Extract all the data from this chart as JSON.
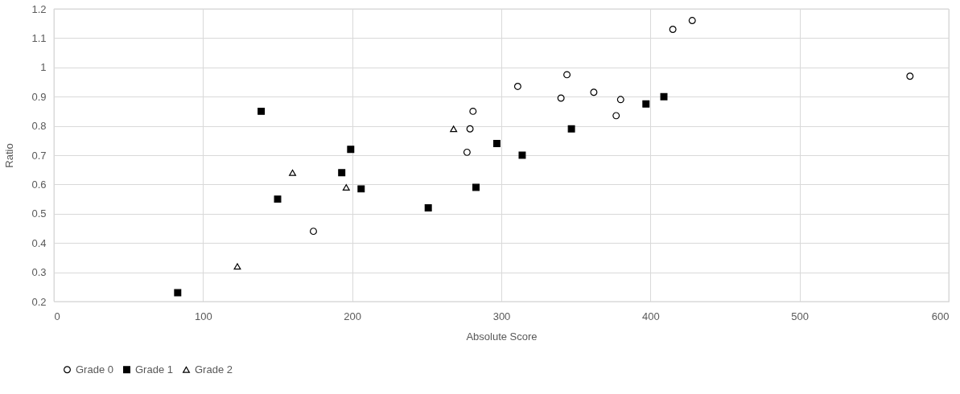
{
  "chart_data": {
    "type": "scatter",
    "xlabel": "Absolute Score",
    "ylabel": "Ratio",
    "xlim": [
      0,
      600
    ],
    "xticks": [
      0,
      100,
      200,
      300,
      400,
      500,
      600
    ],
    "ylim": [
      0.2,
      1.2
    ],
    "yticks": [
      0.2,
      0.3,
      0.4,
      0.5,
      0.6,
      0.7,
      0.8,
      0.9,
      1,
      1.1,
      1.2
    ],
    "grid": true,
    "legend": "bottom",
    "series": [
      {
        "name": "Grade 0",
        "color": "#000000",
        "marker": "circle",
        "x": [
          174,
          277,
          279,
          281,
          311,
          340,
          344,
          362,
          377,
          380,
          415,
          428,
          574
        ],
        "values": [
          0.44,
          0.71,
          0.79,
          0.85,
          0.935,
          0.895,
          0.975,
          0.915,
          0.835,
          0.89,
          1.13,
          1.16,
          0.97
        ]
      },
      {
        "name": "Grade 1",
        "color": "#000000",
        "marker": "square",
        "x": [
          83,
          139,
          150,
          193,
          199,
          206,
          251,
          283,
          297,
          314,
          347,
          397,
          409
        ],
        "values": [
          0.23,
          0.85,
          0.55,
          0.64,
          0.72,
          0.585,
          0.52,
          0.59,
          0.74,
          0.7,
          0.79,
          0.875,
          0.9
        ]
      },
      {
        "name": "Grade 2",
        "color": "#000000",
        "marker": "triangle",
        "x": [
          123,
          160,
          196,
          268
        ],
        "values": [
          0.32,
          0.64,
          0.59,
          0.79
        ]
      }
    ]
  }
}
